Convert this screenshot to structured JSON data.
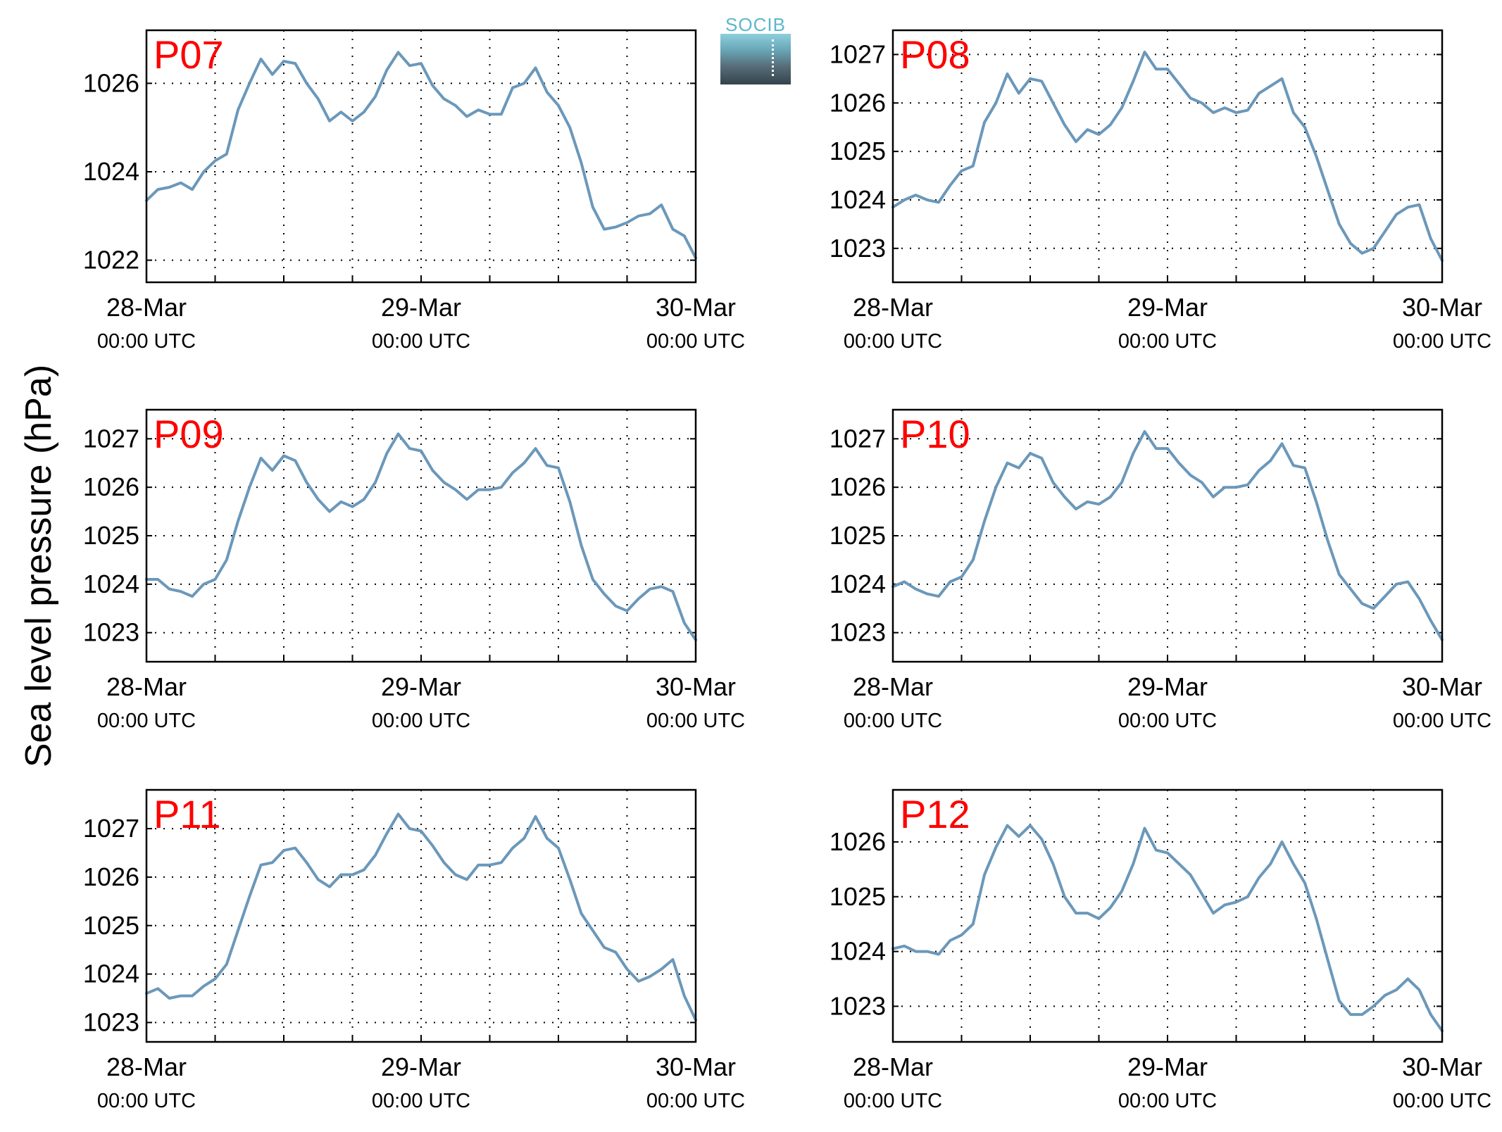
{
  "ylabel": "Sea level pressure (hPa)",
  "logo": {
    "text": "SOCIB"
  },
  "colors": {
    "line": "#6b98ba",
    "panel_label": "#ff0000",
    "grid": "#000000"
  },
  "chart_data": [
    {
      "type": "line",
      "title": "P07",
      "xlim": [
        0,
        48
      ],
      "ylim": [
        1021.5,
        1027.2
      ],
      "yticks": [
        1022,
        1024,
        1026
      ],
      "xticks": [
        {
          "x": 0,
          "line1": "28-Mar",
          "line2": "00:00 UTC"
        },
        {
          "x": 24,
          "line1": "29-Mar",
          "line2": "00:00 UTC"
        },
        {
          "x": 48,
          "line1": "30-Mar",
          "line2": "00:00 UTC"
        }
      ],
      "x": [
        0,
        1,
        2,
        3,
        4,
        5,
        6,
        7,
        8,
        9,
        10,
        11,
        12,
        13,
        14,
        15,
        16,
        17,
        18,
        19,
        20,
        21,
        22,
        23,
        24,
        25,
        26,
        27,
        28,
        29,
        30,
        31,
        32,
        33,
        34,
        35,
        36,
        37,
        38,
        39,
        40,
        41,
        42,
        43,
        44,
        45,
        46,
        47,
        48
      ],
      "y": [
        1023.35,
        1023.6,
        1023.65,
        1023.75,
        1023.6,
        1024.0,
        1024.25,
        1024.4,
        1025.4,
        1026.0,
        1026.55,
        1026.2,
        1026.5,
        1026.45,
        1026.0,
        1025.65,
        1025.15,
        1025.35,
        1025.15,
        1025.35,
        1025.7,
        1026.3,
        1026.7,
        1026.4,
        1026.45,
        1025.95,
        1025.65,
        1025.5,
        1025.25,
        1025.4,
        1025.3,
        1025.3,
        1025.9,
        1026.0,
        1026.35,
        1025.8,
        1025.5,
        1025.0,
        1024.2,
        1023.2,
        1022.7,
        1022.75,
        1022.85,
        1023.0,
        1023.05,
        1023.25,
        1022.7,
        1022.55,
        1022.05
      ]
    },
    {
      "type": "line",
      "title": "P08",
      "xlim": [
        0,
        48
      ],
      "ylim": [
        1022.3,
        1027.5
      ],
      "yticks": [
        1023,
        1024,
        1025,
        1026,
        1027
      ],
      "xticks": [
        {
          "x": 0,
          "line1": "28-Mar",
          "line2": "00:00 UTC"
        },
        {
          "x": 24,
          "line1": "29-Mar",
          "line2": "00:00 UTC"
        },
        {
          "x": 48,
          "line1": "30-Mar",
          "line2": "00:00 UTC"
        }
      ],
      "x": [
        0,
        1,
        2,
        3,
        4,
        5,
        6,
        7,
        8,
        9,
        10,
        11,
        12,
        13,
        14,
        15,
        16,
        17,
        18,
        19,
        20,
        21,
        22,
        23,
        24,
        25,
        26,
        27,
        28,
        29,
        30,
        31,
        32,
        33,
        34,
        35,
        36,
        37,
        38,
        39,
        40,
        41,
        42,
        43,
        44,
        45,
        46,
        47,
        48
      ],
      "y": [
        1023.85,
        1024.0,
        1024.1,
        1024.0,
        1023.95,
        1024.3,
        1024.6,
        1024.7,
        1025.6,
        1026.0,
        1026.6,
        1026.2,
        1026.5,
        1026.45,
        1026.0,
        1025.55,
        1025.2,
        1025.45,
        1025.35,
        1025.55,
        1025.9,
        1026.45,
        1027.05,
        1026.7,
        1026.7,
        1026.4,
        1026.1,
        1026.0,
        1025.8,
        1025.9,
        1025.8,
        1025.85,
        1026.2,
        1026.35,
        1026.5,
        1025.8,
        1025.5,
        1024.9,
        1024.2,
        1023.5,
        1023.1,
        1022.9,
        1023.0,
        1023.35,
        1023.7,
        1023.85,
        1023.9,
        1023.2,
        1022.75
      ]
    },
    {
      "type": "line",
      "title": "P09",
      "xlim": [
        0,
        48
      ],
      "ylim": [
        1022.4,
        1027.6
      ],
      "yticks": [
        1023,
        1024,
        1025,
        1026,
        1027
      ],
      "xticks": [
        {
          "x": 0,
          "line1": "28-Mar",
          "line2": "00:00 UTC"
        },
        {
          "x": 24,
          "line1": "29-Mar",
          "line2": "00:00 UTC"
        },
        {
          "x": 48,
          "line1": "30-Mar",
          "line2": "00:00 UTC"
        }
      ],
      "x": [
        0,
        1,
        2,
        3,
        4,
        5,
        6,
        7,
        8,
        9,
        10,
        11,
        12,
        13,
        14,
        15,
        16,
        17,
        18,
        19,
        20,
        21,
        22,
        23,
        24,
        25,
        26,
        27,
        28,
        29,
        30,
        31,
        32,
        33,
        34,
        35,
        36,
        37,
        38,
        39,
        40,
        41,
        42,
        43,
        44,
        45,
        46,
        47,
        48
      ],
      "y": [
        1024.1,
        1024.1,
        1023.9,
        1023.85,
        1023.75,
        1024.0,
        1024.1,
        1024.5,
        1025.3,
        1026.0,
        1026.6,
        1026.35,
        1026.65,
        1026.55,
        1026.1,
        1025.75,
        1025.5,
        1025.7,
        1025.6,
        1025.75,
        1026.1,
        1026.7,
        1027.1,
        1026.8,
        1026.75,
        1026.35,
        1026.1,
        1025.95,
        1025.75,
        1025.95,
        1025.95,
        1026.0,
        1026.3,
        1026.5,
        1026.8,
        1026.45,
        1026.4,
        1025.7,
        1024.8,
        1024.1,
        1023.8,
        1023.55,
        1023.45,
        1023.7,
        1023.9,
        1023.95,
        1023.85,
        1023.2,
        1022.85
      ]
    },
    {
      "type": "line",
      "title": "P10",
      "xlim": [
        0,
        48
      ],
      "ylim": [
        1022.4,
        1027.6
      ],
      "yticks": [
        1023,
        1024,
        1025,
        1026,
        1027
      ],
      "xticks": [
        {
          "x": 0,
          "line1": "28-Mar",
          "line2": "00:00 UTC"
        },
        {
          "x": 24,
          "line1": "29-Mar",
          "line2": "00:00 UTC"
        },
        {
          "x": 48,
          "line1": "30-Mar",
          "line2": "00:00 UTC"
        }
      ],
      "x": [
        0,
        1,
        2,
        3,
        4,
        5,
        6,
        7,
        8,
        9,
        10,
        11,
        12,
        13,
        14,
        15,
        16,
        17,
        18,
        19,
        20,
        21,
        22,
        23,
        24,
        25,
        26,
        27,
        28,
        29,
        30,
        31,
        32,
        33,
        34,
        35,
        36,
        37,
        38,
        39,
        40,
        41,
        42,
        43,
        44,
        45,
        46,
        47,
        48
      ],
      "y": [
        1023.95,
        1024.05,
        1023.9,
        1023.8,
        1023.75,
        1024.05,
        1024.15,
        1024.5,
        1025.3,
        1026.0,
        1026.5,
        1026.4,
        1026.7,
        1026.6,
        1026.1,
        1025.8,
        1025.55,
        1025.7,
        1025.65,
        1025.8,
        1026.1,
        1026.7,
        1027.15,
        1026.8,
        1026.8,
        1026.5,
        1026.25,
        1026.1,
        1025.8,
        1026.0,
        1026.0,
        1026.05,
        1026.35,
        1026.55,
        1026.9,
        1026.45,
        1026.4,
        1025.7,
        1024.9,
        1024.2,
        1023.9,
        1023.6,
        1023.5,
        1023.75,
        1024.0,
        1024.05,
        1023.7,
        1023.25,
        1022.85
      ]
    },
    {
      "type": "line",
      "title": "P11",
      "xlim": [
        0,
        48
      ],
      "ylim": [
        1022.6,
        1027.8
      ],
      "yticks": [
        1023,
        1024,
        1025,
        1026,
        1027
      ],
      "xticks": [
        {
          "x": 0,
          "line1": "28-Mar",
          "line2": "00:00 UTC"
        },
        {
          "x": 24,
          "line1": "29-Mar",
          "line2": "00:00 UTC"
        },
        {
          "x": 48,
          "line1": "30-Mar",
          "line2": "00:00 UTC"
        }
      ],
      "x": [
        0,
        1,
        2,
        3,
        4,
        5,
        6,
        7,
        8,
        9,
        10,
        11,
        12,
        13,
        14,
        15,
        16,
        17,
        18,
        19,
        20,
        21,
        22,
        23,
        24,
        25,
        26,
        27,
        28,
        29,
        30,
        31,
        32,
        33,
        34,
        35,
        36,
        37,
        38,
        39,
        40,
        41,
        42,
        43,
        44,
        45,
        46,
        47,
        48
      ],
      "y": [
        1023.6,
        1023.7,
        1023.5,
        1023.55,
        1023.55,
        1023.75,
        1023.9,
        1024.2,
        1024.9,
        1025.6,
        1026.25,
        1026.3,
        1026.55,
        1026.6,
        1026.3,
        1025.95,
        1025.8,
        1026.05,
        1026.05,
        1026.15,
        1026.45,
        1026.9,
        1027.3,
        1027.0,
        1026.95,
        1026.65,
        1026.3,
        1026.05,
        1025.95,
        1026.25,
        1026.25,
        1026.3,
        1026.6,
        1026.8,
        1027.25,
        1026.8,
        1026.6,
        1025.95,
        1025.25,
        1024.9,
        1024.55,
        1024.45,
        1024.1,
        1023.85,
        1023.95,
        1024.1,
        1024.3,
        1023.55,
        1023.05
      ]
    },
    {
      "type": "line",
      "title": "P12",
      "xlim": [
        0,
        48
      ],
      "ylim": [
        1022.35,
        1026.95
      ],
      "yticks": [
        1023,
        1024,
        1025,
        1026
      ],
      "xticks": [
        {
          "x": 0,
          "line1": "28-Mar",
          "line2": "00:00 UTC"
        },
        {
          "x": 24,
          "line1": "29-Mar",
          "line2": "00:00 UTC"
        },
        {
          "x": 48,
          "line1": "30-Mar",
          "line2": "00:00 UTC"
        }
      ],
      "x": [
        0,
        1,
        2,
        3,
        4,
        5,
        6,
        7,
        8,
        9,
        10,
        11,
        12,
        13,
        14,
        15,
        16,
        17,
        18,
        19,
        20,
        21,
        22,
        23,
        24,
        25,
        26,
        27,
        28,
        29,
        30,
        31,
        32,
        33,
        34,
        35,
        36,
        37,
        38,
        39,
        40,
        41,
        42,
        43,
        44,
        45,
        46,
        47,
        48
      ],
      "y": [
        1024.05,
        1024.1,
        1024.0,
        1024.0,
        1023.95,
        1024.2,
        1024.3,
        1024.5,
        1025.4,
        1025.9,
        1026.3,
        1026.1,
        1026.3,
        1026.05,
        1025.6,
        1025.0,
        1024.7,
        1024.7,
        1024.6,
        1024.8,
        1025.1,
        1025.6,
        1026.25,
        1025.85,
        1025.8,
        1025.6,
        1025.4,
        1025.05,
        1024.7,
        1024.85,
        1024.9,
        1025.0,
        1025.35,
        1025.6,
        1026.0,
        1025.6,
        1025.25,
        1024.6,
        1023.85,
        1023.1,
        1022.85,
        1022.85,
        1023.0,
        1023.2,
        1023.3,
        1023.5,
        1023.3,
        1022.85,
        1022.55
      ]
    }
  ]
}
